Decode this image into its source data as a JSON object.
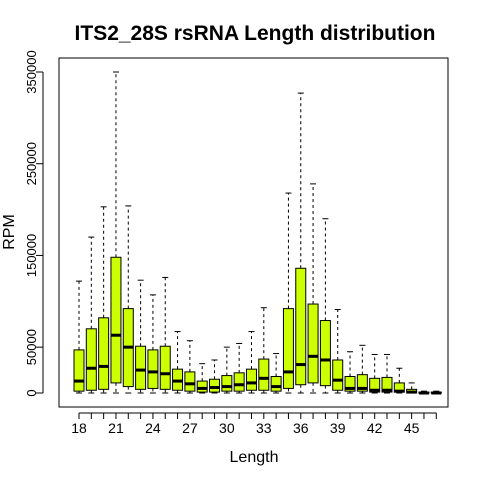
{
  "chart_data": {
    "type": "boxplot",
    "title": "ITS2_28S rsRNA Length distribution",
    "xlabel": "Length",
    "ylabel": "RPM",
    "x_tick_labels": [
      "18",
      "21",
      "24",
      "27",
      "30",
      "33",
      "36",
      "39",
      "42",
      "45"
    ],
    "y_ticks": [
      0,
      50000,
      150000,
      250000,
      350000
    ],
    "y_tick_labels": [
      "0",
      "50000",
      "150000",
      "250000",
      "350000"
    ],
    "ylim": [
      0,
      350000
    ],
    "box_fill": "#ccff00",
    "grid": false,
    "legend": "none",
    "boxes": [
      {
        "length": 18,
        "min": 0,
        "q1": 2000,
        "median": 13000,
        "q3": 47000,
        "max": 122000
      },
      {
        "length": 19,
        "min": 0,
        "q1": 3000,
        "median": 27000,
        "q3": 70000,
        "max": 170000
      },
      {
        "length": 20,
        "min": 0,
        "q1": 4000,
        "median": 29000,
        "q3": 82000,
        "max": 203000
      },
      {
        "length": 21,
        "min": 0,
        "q1": 11000,
        "median": 63000,
        "q3": 148000,
        "max": 350000
      },
      {
        "length": 22,
        "min": 0,
        "q1": 7000,
        "median": 50000,
        "q3": 92000,
        "max": 204000
      },
      {
        "length": 23,
        "min": 0,
        "q1": 4000,
        "median": 25000,
        "q3": 51000,
        "max": 123000
      },
      {
        "length": 24,
        "min": 0,
        "q1": 5000,
        "median": 23000,
        "q3": 47000,
        "max": 107000
      },
      {
        "length": 25,
        "min": 0,
        "q1": 4000,
        "median": 21000,
        "q3": 51000,
        "max": 126000
      },
      {
        "length": 26,
        "min": 0,
        "q1": 3000,
        "median": 13000,
        "q3": 26000,
        "max": 67000
      },
      {
        "length": 27,
        "min": 0,
        "q1": 2000,
        "median": 10000,
        "q3": 23000,
        "max": 57000
      },
      {
        "length": 28,
        "min": 0,
        "q1": 1000,
        "median": 5000,
        "q3": 13000,
        "max": 32000
      },
      {
        "length": 29,
        "min": 0,
        "q1": 1000,
        "median": 6000,
        "q3": 15000,
        "max": 36000
      },
      {
        "length": 30,
        "min": 0,
        "q1": 2000,
        "median": 7000,
        "q3": 19000,
        "max": 50000
      },
      {
        "length": 31,
        "min": 0,
        "q1": 2000,
        "median": 9000,
        "q3": 22000,
        "max": 54000
      },
      {
        "length": 32,
        "min": 0,
        "q1": 3000,
        "median": 11000,
        "q3": 26000,
        "max": 67000
      },
      {
        "length": 33,
        "min": 0,
        "q1": 3000,
        "median": 16000,
        "q3": 37000,
        "max": 93000
      },
      {
        "length": 34,
        "min": 0,
        "q1": 2000,
        "median": 7000,
        "q3": 18000,
        "max": 43000
      },
      {
        "length": 35,
        "min": 0,
        "q1": 5000,
        "median": 23000,
        "q3": 92000,
        "max": 218000
      },
      {
        "length": 36,
        "min": 0,
        "q1": 9000,
        "median": 31000,
        "q3": 136000,
        "max": 327000
      },
      {
        "length": 37,
        "min": 0,
        "q1": 11000,
        "median": 40000,
        "q3": 97000,
        "max": 228000
      },
      {
        "length": 38,
        "min": 0,
        "q1": 8000,
        "median": 36000,
        "q3": 79000,
        "max": 190000
      },
      {
        "length": 39,
        "min": 0,
        "q1": 3000,
        "median": 14000,
        "q3": 36000,
        "max": 91000
      },
      {
        "length": 40,
        "min": 0,
        "q1": 2000,
        "median": 5000,
        "q3": 18000,
        "max": 45000
      },
      {
        "length": 41,
        "min": 0,
        "q1": 2000,
        "median": 5000,
        "q3": 20000,
        "max": 52000
      },
      {
        "length": 42,
        "min": 0,
        "q1": 1000,
        "median": 3000,
        "q3": 16000,
        "max": 42000
      },
      {
        "length": 43,
        "min": 0,
        "q1": 1000,
        "median": 3000,
        "q3": 17000,
        "max": 42000
      },
      {
        "length": 44,
        "min": 0,
        "q1": 1000,
        "median": 2000,
        "q3": 11000,
        "max": 27000
      },
      {
        "length": 45,
        "min": 0,
        "q1": 0,
        "median": 1000,
        "q3": 4000,
        "max": 11000
      },
      {
        "length": 46,
        "min": 0,
        "q1": 0,
        "median": 0,
        "q3": 1000,
        "max": 2000
      },
      {
        "length": 47,
        "min": 0,
        "q1": 0,
        "median": 0,
        "q3": 1000,
        "max": 2000
      }
    ]
  }
}
